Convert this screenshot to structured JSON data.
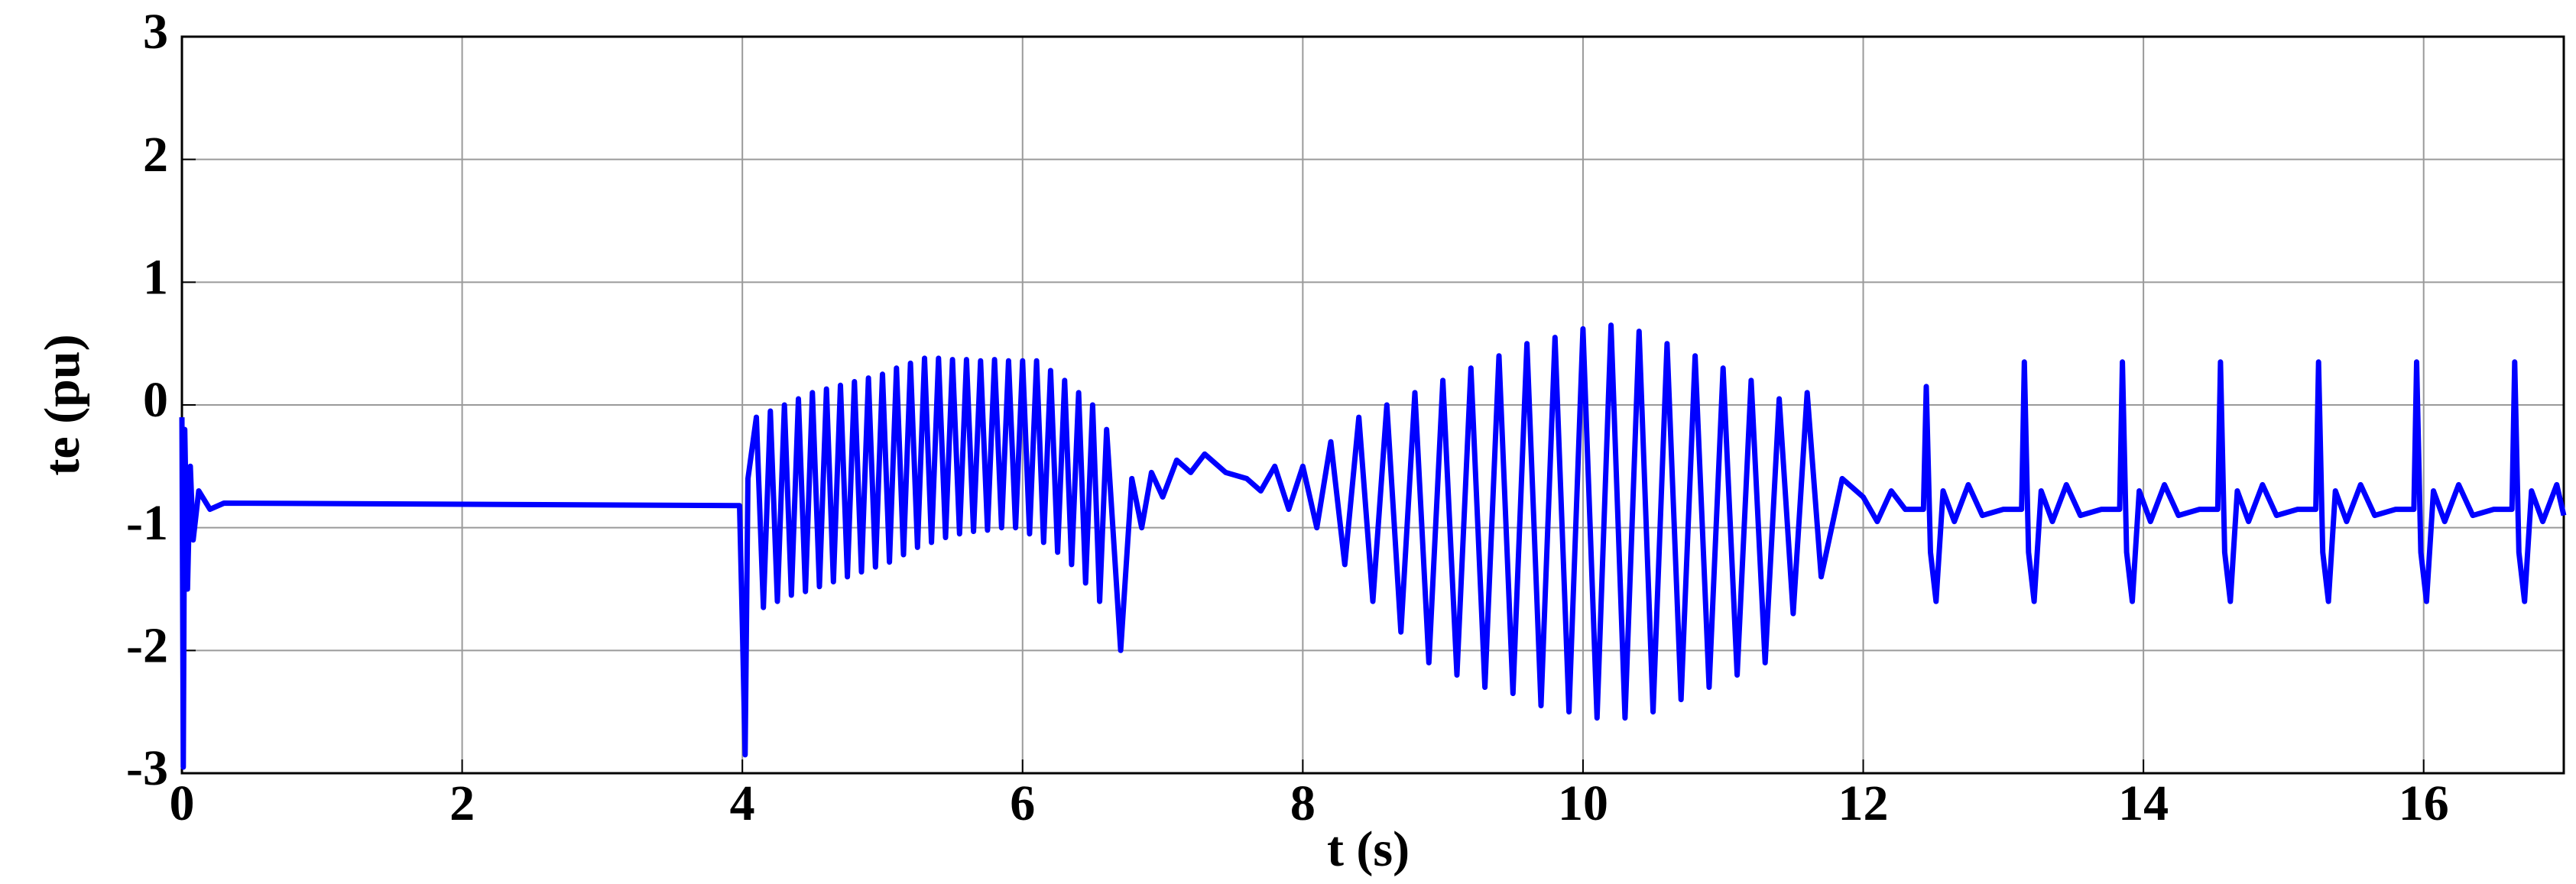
{
  "chart_data": {
    "type": "line",
    "xlabel": "t (s)",
    "ylabel": "te (pu)",
    "xlim": [
      0,
      17
    ],
    "ylim": [
      -3,
      3
    ],
    "xticks": [
      0,
      2,
      4,
      6,
      8,
      10,
      12,
      14,
      16
    ],
    "yticks": [
      -3,
      -2,
      -1,
      0,
      1,
      2,
      3
    ],
    "grid": true,
    "series": [
      {
        "color": "#0000ff",
        "x": [
          0,
          0.01,
          0.02,
          0.04,
          0.06,
          0.08,
          0.12,
          0.2,
          0.3,
          3.98,
          4.0,
          4.02,
          4.04,
          4.1,
          4.15,
          4.2,
          4.25,
          4.3,
          4.35,
          4.4,
          4.45,
          4.5,
          4.55,
          4.6,
          4.65,
          4.7,
          4.75,
          4.8,
          4.85,
          4.9,
          4.95,
          5.0,
          5.05,
          5.1,
          5.15,
          5.2,
          5.25,
          5.3,
          5.35,
          5.4,
          5.45,
          5.5,
          5.55,
          5.6,
          5.65,
          5.7,
          5.75,
          5.8,
          5.85,
          5.9,
          5.95,
          6.0,
          6.05,
          6.1,
          6.15,
          6.2,
          6.25,
          6.3,
          6.35,
          6.4,
          6.45,
          6.5,
          6.55,
          6.6,
          6.7,
          6.78,
          6.85,
          6.92,
          7.0,
          7.1,
          7.2,
          7.3,
          7.45,
          7.6,
          7.7,
          7.8,
          7.9,
          8.0,
          8.1,
          8.2,
          8.3,
          8.4,
          8.5,
          8.6,
          8.7,
          8.8,
          8.9,
          9.0,
          9.1,
          9.2,
          9.3,
          9.4,
          9.5,
          9.6,
          9.7,
          9.8,
          9.9,
          10.0,
          10.1,
          10.2,
          10.3,
          10.4,
          10.5,
          10.6,
          10.7,
          10.8,
          10.9,
          11.0,
          11.1,
          11.2,
          11.3,
          11.4,
          11.5,
          11.6,
          11.7,
          11.85,
          12.0,
          12.1,
          12.2,
          12.3,
          12.43,
          12.45,
          12.48,
          12.52,
          12.57,
          12.65,
          12.75,
          12.85,
          13.0,
          13.13,
          13.15,
          13.18,
          13.22,
          13.27,
          13.35,
          13.45,
          13.55,
          13.7,
          13.83,
          13.85,
          13.88,
          13.92,
          13.97,
          14.05,
          14.15,
          14.25,
          14.4,
          14.53,
          14.55,
          14.58,
          14.62,
          14.67,
          14.75,
          14.85,
          14.95,
          15.1,
          15.23,
          15.25,
          15.28,
          15.32,
          15.37,
          15.45,
          15.55,
          15.65,
          15.8,
          15.93,
          15.95,
          15.98,
          16.02,
          16.07,
          16.15,
          16.25,
          16.35,
          16.5,
          16.63,
          16.65,
          16.68,
          16.72,
          16.77,
          16.85,
          16.95,
          17.0
        ],
        "values": [
          -0.1,
          -2.95,
          -0.2,
          -1.5,
          -0.5,
          -1.1,
          -0.7,
          -0.85,
          -0.8,
          -0.82,
          -1.8,
          -2.85,
          -0.6,
          -0.1,
          -1.65,
          -0.05,
          -1.6,
          0,
          -1.55,
          0.05,
          -1.52,
          0.1,
          -1.48,
          0.13,
          -1.44,
          0.16,
          -1.4,
          0.19,
          -1.36,
          0.22,
          -1.32,
          0.25,
          -1.28,
          0.3,
          -1.22,
          0.34,
          -1.16,
          0.38,
          -1.12,
          0.38,
          -1.08,
          0.37,
          -1.05,
          0.37,
          -1.03,
          0.36,
          -1.02,
          0.37,
          -1.0,
          0.36,
          -1.0,
          0.36,
          -1.05,
          0.36,
          -1.12,
          0.28,
          -1.2,
          0.2,
          -1.3,
          0.1,
          -1.45,
          0.0,
          -1.6,
          -0.2,
          -2.0,
          -0.6,
          -1.0,
          -0.55,
          -0.75,
          -0.45,
          -0.55,
          -0.4,
          -0.55,
          -0.6,
          -0.7,
          -0.5,
          -0.85,
          -0.5,
          -1.0,
          -0.3,
          -1.3,
          -0.1,
          -1.6,
          0.0,
          -1.85,
          0.1,
          -2.1,
          0.2,
          -2.2,
          0.3,
          -2.3,
          0.4,
          -2.35,
          0.5,
          -2.45,
          0.55,
          -2.5,
          0.62,
          -2.55,
          0.65,
          -2.55,
          0.6,
          -2.5,
          0.5,
          -2.4,
          0.4,
          -2.3,
          0.3,
          -2.2,
          0.2,
          -2.1,
          0.05,
          -1.7,
          0.1,
          -1.4,
          -0.6,
          -0.75,
          -0.95,
          -0.7,
          -0.85,
          -0.85,
          0.15,
          -1.2,
          -1.6,
          -0.7,
          -0.95,
          -0.65,
          -0.9,
          -0.85,
          -0.85,
          0.35,
          -1.2,
          -1.6,
          -0.7,
          -0.95,
          -0.65,
          -0.9,
          -0.85,
          -0.85,
          0.35,
          -1.2,
          -1.6,
          -0.7,
          -0.95,
          -0.65,
          -0.9,
          -0.85,
          -0.85,
          0.35,
          -1.2,
          -1.6,
          -0.7,
          -0.95,
          -0.65,
          -0.9,
          -0.85,
          -0.85,
          0.35,
          -1.2,
          -1.6,
          -0.7,
          -0.95,
          -0.65,
          -0.9,
          -0.85,
          -0.85,
          0.35,
          -1.2,
          -1.6,
          -0.7,
          -0.95,
          -0.65,
          -0.9,
          -0.85,
          -0.85,
          0.35,
          -1.2,
          -1.6,
          -0.7,
          -0.95,
          -0.65,
          -0.9
        ]
      }
    ]
  }
}
